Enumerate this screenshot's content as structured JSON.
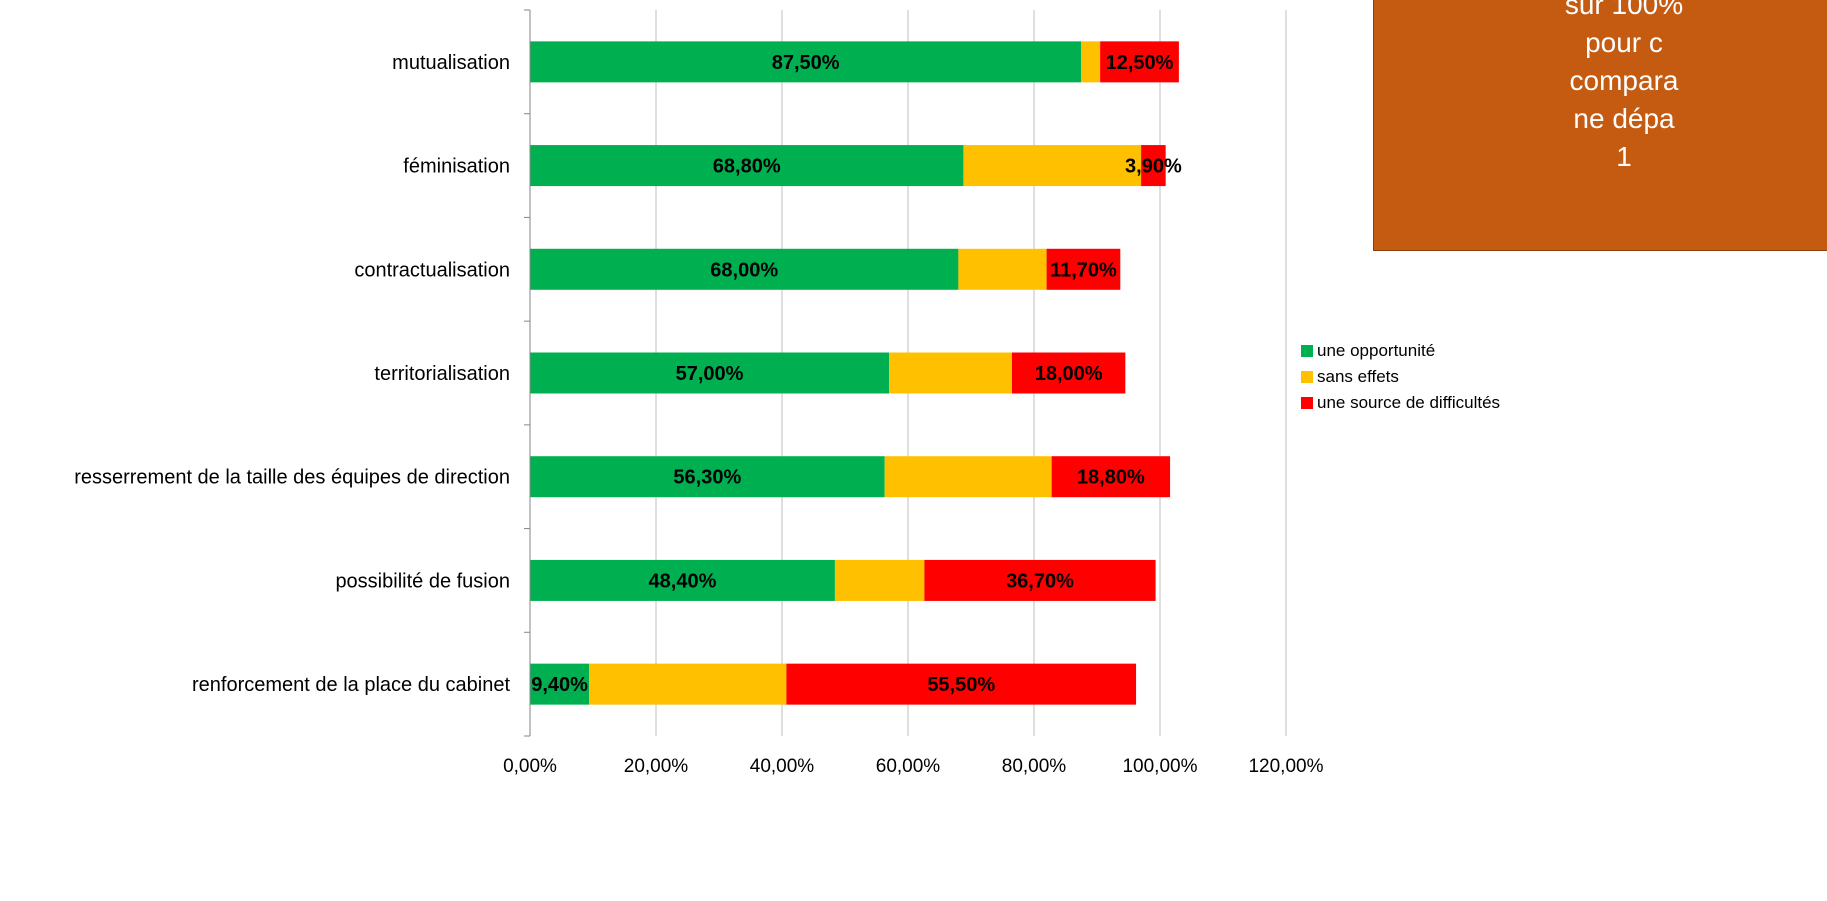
{
  "note": {
    "text": "sur 100%\npour c\ncompara\nne dépa\n1"
  },
  "colors": {
    "opportunite": "#00b050",
    "sans_effets": "#ffc000",
    "difficultes": "#ff0000",
    "note_bg": "#c55a11",
    "grid": "#bfbfbf"
  },
  "chart_data": {
    "type": "bar",
    "orientation": "horizontal",
    "stacked": true,
    "categories": [
      "mutualisation",
      "féminisation",
      "contractualisation",
      "territorialisation",
      "resserrement de la taille des équipes de direction",
      "possibilité de fusion",
      "renforcement de la place du cabinet"
    ],
    "series": [
      {
        "name": "une opportunité",
        "color": "#00b050",
        "values": [
          87.5,
          68.8,
          68.0,
          57.0,
          56.3,
          48.4,
          9.4
        ],
        "labels": [
          "87,50%",
          "68,80%",
          "68,00%",
          "57,00%",
          "56,30%",
          "48,40%",
          "9,40%"
        ]
      },
      {
        "name": "sans effets",
        "color": "#ffc000",
        "values": [
          3.0,
          28.2,
          14.0,
          19.5,
          26.5,
          14.2,
          31.3
        ],
        "labels": [
          "",
          "",
          "",
          "",
          "",
          "",
          ""
        ]
      },
      {
        "name": "une source de difficultés",
        "color": "#ff0000",
        "values": [
          12.5,
          3.9,
          11.7,
          18.0,
          18.8,
          36.7,
          55.5
        ],
        "labels": [
          "12,50%",
          "3,90%",
          "11,70%",
          "18,00%",
          "18,80%",
          "36,70%",
          "55,50%"
        ]
      }
    ],
    "xlim": [
      0,
      120
    ],
    "xticks": [
      0,
      20,
      40,
      60,
      80,
      100,
      120
    ],
    "xtick_labels": [
      "0,00%",
      "20,00%",
      "40,00%",
      "60,00%",
      "80,00%",
      "100,00%",
      "120,00%"
    ],
    "grid": true,
    "legend": "right"
  }
}
